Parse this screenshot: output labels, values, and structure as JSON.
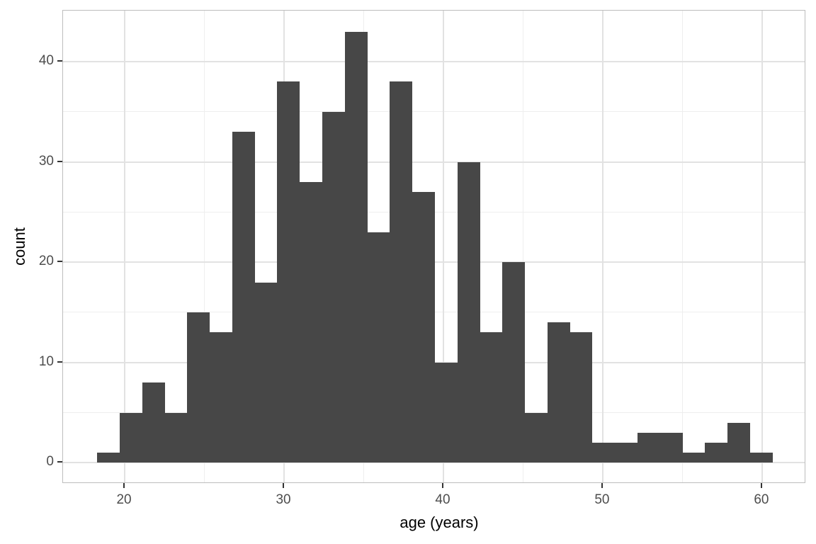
{
  "chart_data": {
    "type": "bar",
    "subtype": "histogram",
    "title": "",
    "xlabel": "age (years)",
    "ylabel": "count",
    "bin_start_age": 18.27,
    "bin_width_years": 1.413,
    "counts": [
      1,
      5,
      8,
      5,
      15,
      13,
      33,
      18,
      38,
      28,
      35,
      43,
      23,
      38,
      27,
      10,
      30,
      13,
      20,
      5,
      14,
      13,
      2,
      2,
      3,
      3,
      1,
      2,
      4,
      1
    ],
    "total_observations": 453,
    "x_major_ticks": [
      20,
      30,
      40,
      50,
      60
    ],
    "x_minor_ticks": [
      25,
      35,
      45,
      55
    ],
    "y_major_ticks": [
      0,
      10,
      20,
      30,
      40
    ],
    "y_minor_ticks": [
      5,
      15,
      25,
      35
    ],
    "x_domain": [
      16.13,
      62.76
    ],
    "y_domain": [
      -2.1,
      45.1
    ],
    "grid": true,
    "legend_position": "none",
    "bar_color": "#474747",
    "panel_background": "#ffffff",
    "panel_border_color": "#bdbdbd",
    "grid_major_color": "#e2e2e2",
    "grid_minor_color": "#eeeeee",
    "tick_mark_color": "#333333",
    "tick_label_color": "#4d4d4d",
    "axis_title_color": "#000000"
  }
}
